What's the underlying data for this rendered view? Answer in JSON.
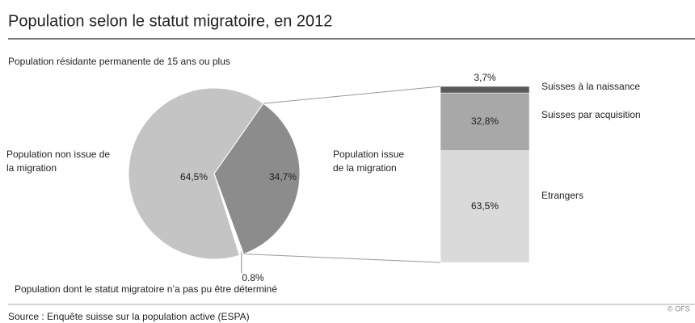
{
  "chart_data": [
    {
      "type": "pie",
      "title": "Population selon le statut migratoire, en 2012",
      "subtitle": "Population résidante permanente de 15 ans ou plus",
      "categories": [
        "Population issue de la migration",
        "Population dont le statut migratoire n’a pas pu être déterminé",
        "Population non issue de la migration"
      ],
      "values": [
        34.7,
        0.8,
        64.5
      ],
      "value_labels": [
        "34,7%",
        "0.8%",
        "64,5%"
      ],
      "colors": [
        "#8c8c8c",
        "#ffffff",
        "#c4c4c4"
      ]
    },
    {
      "type": "stacked-bar",
      "categories": [
        "Etrangers",
        "Suisses par acquisition",
        "Suisses à la naissance"
      ],
      "values": [
        63.5,
        32.8,
        3.7
      ],
      "value_labels": [
        "63,5%",
        "32,8%",
        "3,7%"
      ],
      "colors": [
        "#dadada",
        "#a8a8a8",
        "#5a5a5a"
      ]
    }
  ],
  "footer": {
    "source": "Source : Enquête suisse sur la population active (ESPA)",
    "copyright": "© OFS"
  }
}
